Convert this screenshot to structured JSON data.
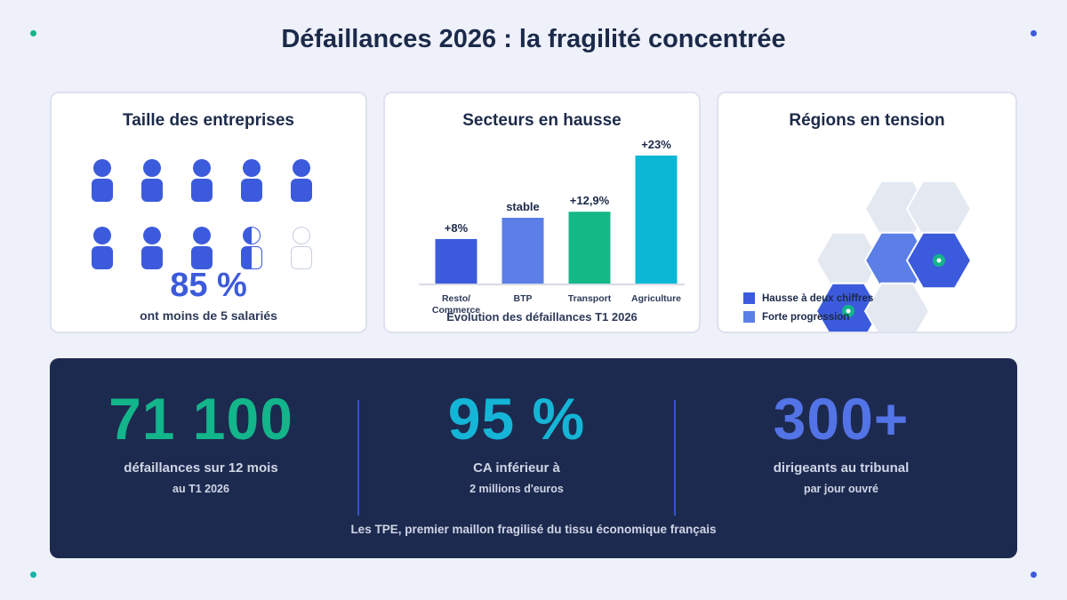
{
  "title": "Défaillances 2026 : la fragilité concentrée",
  "size_card": {
    "title": "Taille des entreprises",
    "share_value": 85,
    "big_value": "85 %",
    "big_label": "ont moins de 5 salariés",
    "icon_states": [
      "full",
      "full",
      "full",
      "full",
      "full",
      "full",
      "full",
      "full",
      "half",
      "empty"
    ]
  },
  "sectors_card": {
    "title": "Secteurs en hausse",
    "caption": "Évolution des défaillances T1 2026"
  },
  "regions_card": {
    "title": "Régions en tension",
    "legend": [
      {
        "label": "Hausse à deux chiffres",
        "color": "#3c5bdc"
      },
      {
        "label": "Forte progression",
        "color": "#5b7fe6"
      }
    ]
  },
  "chart_data": {
    "type": "bar",
    "title": "Secteurs en hausse",
    "categories": [
      "Resto/\nCommerce",
      "BTP",
      "Transport",
      "Agriculture"
    ],
    "values": [
      8,
      0,
      12.9,
      23
    ],
    "data_labels": [
      "+8%",
      "stable",
      "+12,9%",
      "+23%"
    ],
    "colors": [
      "#3c5bdc",
      "#5b7fe6",
      "#14b886",
      "#0ab8d5"
    ],
    "caption": "Évolution des défaillances T1 2026"
  },
  "panel": {
    "stats": [
      {
        "value": "71 100",
        "main": "défaillances sur 12 mois",
        "sub": "au T1 2026",
        "color": "#13b58a"
      },
      {
        "value": "95 %",
        "main": "CA inférieur à",
        "sub": "2 millions d'euros",
        "color": "#14b5d6"
      },
      {
        "value": "300+",
        "main": "dirigeants au tribunal",
        "sub": "par jour ouvré",
        "color": "#5374e6"
      }
    ],
    "footer": "Les TPE, premier maillon fragilisé du tissu économique français"
  },
  "colors": {
    "background": "#eef1f9",
    "panel": "#1d2a4f",
    "accent_blue": "#3c5bdc",
    "accent_green": "#13b58a",
    "accent_cyan": "#14b5d6",
    "hex_neutral": "#e3e8f1"
  }
}
